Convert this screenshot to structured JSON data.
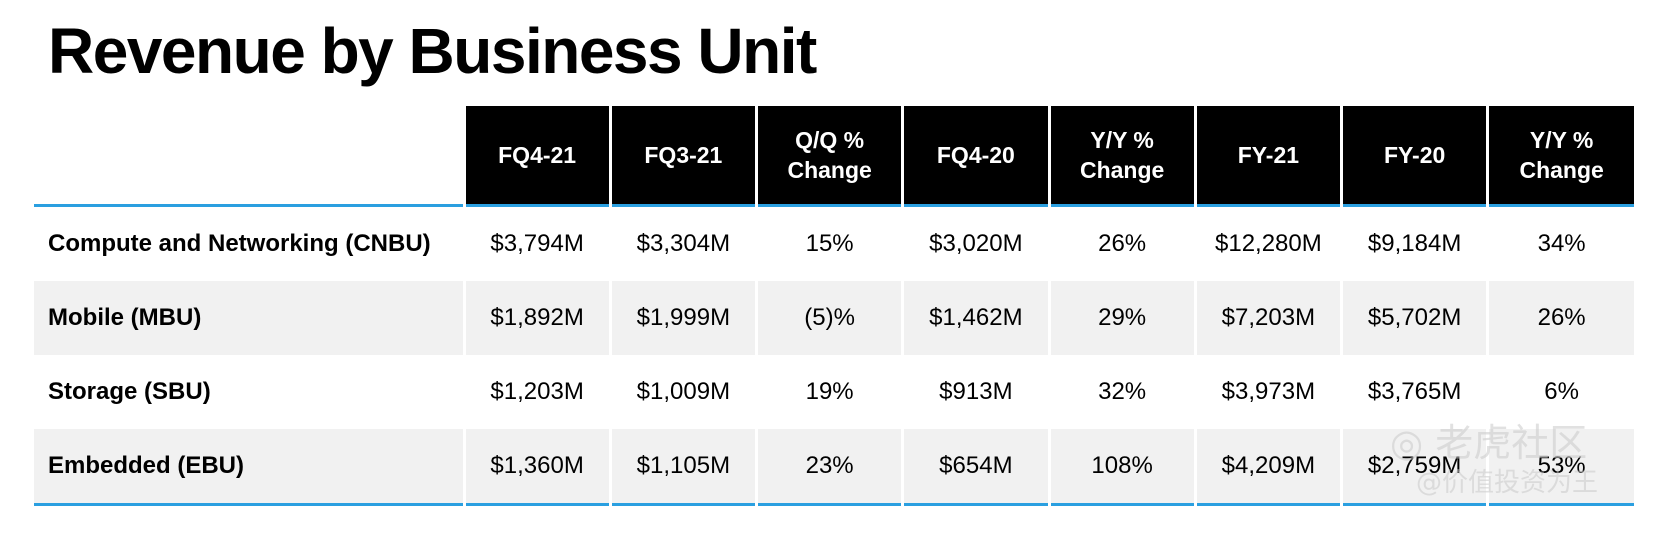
{
  "title": "Revenue by Business Unit",
  "table": {
    "headers": [
      "FQ4-21",
      "FQ3-21",
      "Q/Q % Change",
      "FQ4-20",
      "Y/Y % Change",
      "FY-21",
      "FY-20",
      "Y/Y % Change"
    ],
    "rows": [
      {
        "label": "Compute and Networking (CNBU)",
        "values": [
          "$3,794M",
          "$3,304M",
          "15%",
          "$3,020M",
          "26%",
          "$12,280M",
          "$9,184M",
          "34%"
        ]
      },
      {
        "label": "Mobile (MBU)",
        "values": [
          "$1,892M",
          "$1,999M",
          "(5)%",
          "$1,462M",
          "29%",
          "$7,203M",
          "$5,702M",
          "26%"
        ]
      },
      {
        "label": "Storage (SBU)",
        "values": [
          "$1,203M",
          "$1,009M",
          "19%",
          "$913M",
          "32%",
          "$3,973M",
          "$3,765M",
          "6%"
        ]
      },
      {
        "label": "Embedded (EBU)",
        "values": [
          "$1,360M",
          "$1,105M",
          "23%",
          "$654M",
          "108%",
          "$4,209M",
          "$2,759M",
          "53%"
        ]
      }
    ]
  },
  "watermark": {
    "logo_text": "◎ 老虎社区",
    "handle": "@价值投资为王"
  },
  "colors": {
    "header_bg": "#000000",
    "accent_rule": "#2a9fe0",
    "row_shade": "#f1f1f1"
  }
}
